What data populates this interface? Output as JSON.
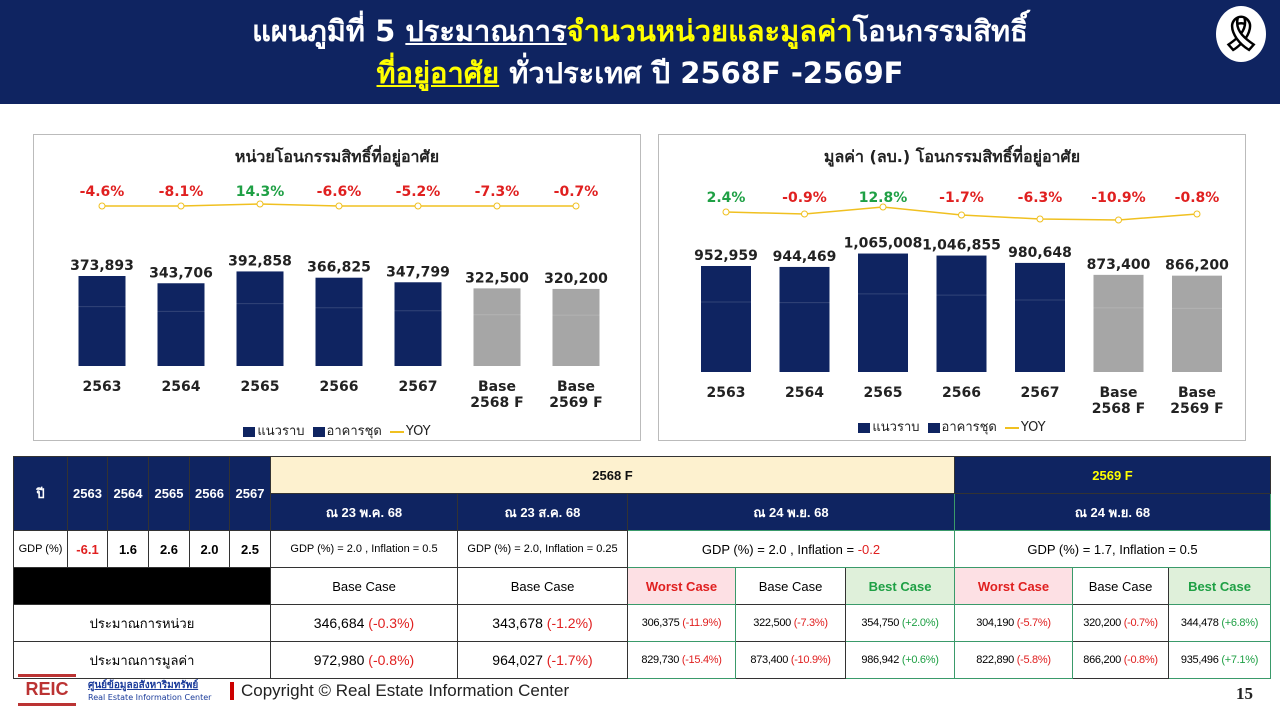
{
  "header": {
    "title_line1_a": "แผนภูมิที่ 5 ",
    "title_line1_b": "ประมาณการ",
    "title_line1_c": "จำนวนหน่วยและมูลค่า",
    "title_line1_d": "โอนกรรมสิทธิ์",
    "title_line2_a": "ที่อยู่อาศัย",
    "title_line2_b": " ทั่วประเทศ ปี 2568F -2569F",
    "icon": "mourning-ribbon-icon"
  },
  "colors": {
    "navy": "#0f2461",
    "grey": "#a6a6a6",
    "red": "#e02020",
    "green": "#1fa045",
    "yoy": "#f0c020"
  },
  "chart_data": [
    {
      "type": "bar",
      "title": "หน่วยโอนกรรมสิทธิ์ที่อยู่อาศัย",
      "categories": [
        "2563",
        "2564",
        "2565",
        "2566",
        "2567",
        "Base\n2568 F",
        "Base\n2569 F"
      ],
      "values": [
        373893,
        343706,
        392858,
        366825,
        347799,
        322500,
        320200
      ],
      "value_labels": [
        "373,893",
        "343,706",
        "392,858",
        "366,825",
        "347,799",
        "322,500",
        "320,200"
      ],
      "forecast": [
        false,
        false,
        false,
        false,
        false,
        true,
        true
      ],
      "yoy": [
        -4.6,
        -8.1,
        14.3,
        -6.6,
        -5.2,
        -7.3,
        -0.7
      ],
      "yoy_labels": [
        "-4.6%",
        "-8.1%",
        "14.3%",
        "-6.6%",
        "-5.2%",
        "-7.3%",
        "-0.7%"
      ],
      "legend": [
        "แนวราบ",
        "อาคารชุด",
        "YOY"
      ],
      "legend_position": "bottom"
    },
    {
      "type": "bar",
      "title": "มูลค่า (ลบ.) โอนกรรมสิทธิ์ที่อยู่อาศัย",
      "categories": [
        "2563",
        "2564",
        "2565",
        "2566",
        "2567",
        "Base\n2568 F",
        "Base\n2569 F"
      ],
      "values": [
        952959,
        944469,
        1065008,
        1046855,
        980648,
        873400,
        866200
      ],
      "value_labels": [
        "952,959",
        "944,469",
        "1,065,008",
        "1,046,855",
        "980,648",
        "873,400",
        "866,200"
      ],
      "forecast": [
        false,
        false,
        false,
        false,
        false,
        true,
        true
      ],
      "yoy": [
        2.4,
        -0.9,
        12.8,
        -1.7,
        -6.3,
        -10.9,
        -0.8
      ],
      "yoy_labels": [
        "2.4%",
        "-0.9%",
        "12.8%",
        "-1.7%",
        "-6.3%",
        "-10.9%",
        "-0.8%"
      ],
      "legend": [
        "แนวราบ",
        "อาคารชุด",
        "YOY"
      ],
      "legend_position": "bottom"
    }
  ],
  "table": {
    "year_label": "ปี",
    "years": [
      "2563",
      "2564",
      "2565",
      "2566",
      "2567"
    ],
    "f2568": "2568 F",
    "f2569": "2569 F",
    "d1": "ณ 23 พ.ค. 68",
    "d2": "ณ 23 ส.ค. 68",
    "d3": "ณ 24 พ.ย. 68",
    "d4": "ณ 24 พ.ย. 68",
    "gdp_label": "GDP (%)",
    "gdp": [
      "-6.1",
      "1.6",
      "2.6",
      "2.0",
      "2.5"
    ],
    "g1": "GDP (%) = 2.0 , Inflation = 0.5",
    "g2": "GDP (%) = 2.0, Inflation = 0.25",
    "g3a": "GDP (%) = 2.0 , Inflation = ",
    "g3b": "-0.2",
    "g4": "GDP (%) = 1.7, Inflation = 0.5",
    "base": "Base Case",
    "worst": "Worst Case",
    "best": "Best Case",
    "units_label": "ประมาณการหน่วย",
    "value_label": "ประมาณการมูลค่า",
    "units": [
      [
        "346,684",
        "(-0.3%)"
      ],
      [
        "343,678",
        "(-1.2%)"
      ],
      [
        "306,375",
        "(-11.9%)"
      ],
      [
        "322,500",
        "(-7.3%)"
      ],
      [
        "354,750",
        "(+2.0%)"
      ],
      [
        "304,190",
        "(-5.7%)"
      ],
      [
        "320,200",
        "(-0.7%)"
      ],
      [
        "344,478",
        "(+6.8%)"
      ]
    ],
    "values": [
      [
        "972,980",
        "(-0.8%)"
      ],
      [
        "964,027",
        "(-1.7%)"
      ],
      [
        "829,730",
        "(-15.4%)"
      ],
      [
        "873,400",
        "(-10.9%)"
      ],
      [
        "986,942",
        "(+0.6%)"
      ],
      [
        "822,890",
        "(-5.8%)"
      ],
      [
        "866,200",
        "(-0.8%)"
      ],
      [
        "935,496",
        "(+7.1%)"
      ]
    ]
  },
  "footer": {
    "logo": "REIC",
    "org_th": "ศูนย์ข้อมูลอสังหาริมทรัพย์",
    "org_en": "Real Estate Information Center",
    "copyright": "Copyright © Real Estate Information Center",
    "page": "15"
  }
}
